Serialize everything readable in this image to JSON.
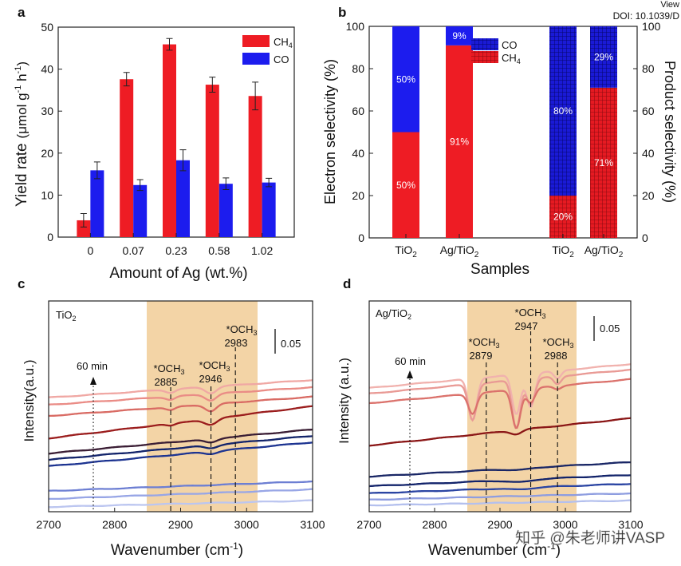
{
  "header": {
    "view_text": "View",
    "doi_text": "DOI: 10.1039/D"
  },
  "watermark": "知乎 @朱老师讲VASP",
  "colors": {
    "ch4": "#ee1c24",
    "co": "#1c1cee",
    "band": "#f3d4a6",
    "ch4_grid": "#c0111a",
    "co_grid": "#0b0b8c"
  },
  "chart_data": [
    {
      "panel": "a",
      "type": "bar",
      "title": "",
      "categories": [
        "0",
        "0.07",
        "0.23",
        "0.58",
        "1.02"
      ],
      "xlabel": "Amount of Ag (wt.%)",
      "ylabel": "Yield rate (μmol g⁻¹ h⁻¹)",
      "ylabel_main": "Yield rate",
      "ylabel_unit": "(μmol g",
      "ylabel_sup1": "-1",
      "ylabel_mid": " h",
      "ylabel_sup2": "-1",
      "ylabel_end": ")",
      "ylim": [
        0,
        50
      ],
      "yticks": [
        "0",
        "10",
        "20",
        "30",
        "40",
        "50"
      ],
      "series": [
        {
          "name": "CH4",
          "legend_main": "CH",
          "legend_sub": "4",
          "values": [
            4.0,
            37.6,
            45.9,
            36.3,
            33.6
          ],
          "errors": [
            1.6,
            1.6,
            1.4,
            1.8,
            3.3
          ]
        },
        {
          "name": "CO",
          "legend_main": "CO",
          "legend_sub": "",
          "values": [
            15.9,
            12.4,
            18.3,
            12.7,
            13.0
          ],
          "errors": [
            2.0,
            1.3,
            2.5,
            1.4,
            1.0
          ]
        }
      ]
    },
    {
      "panel": "b",
      "type": "bar",
      "stacked": true,
      "xlabel": "Samples",
      "ylabel_left": "Electron selectivity (%)",
      "ylabel_right": "Product selectivity (%)",
      "ylim": [
        0,
        100
      ],
      "yticks": [
        "0",
        "20",
        "40",
        "60",
        "80",
        "100"
      ],
      "categories": [
        {
          "main": "TiO",
          "sub": "2",
          "end": ""
        },
        {
          "main": "Ag/TiO",
          "sub": "2",
          "end": ""
        },
        {
          "main": "TiO",
          "sub": "2",
          "end": ""
        },
        {
          "main": "Ag/TiO",
          "sub": "2",
          "end": ""
        }
      ],
      "axis_group": [
        "Electron selectivity",
        "Electron selectivity",
        "Product selectivity",
        "Product selectivity"
      ],
      "series": [
        {
          "name": "CH4",
          "legend_main": "CH",
          "legend_sub": "4",
          "values": [
            50,
            91,
            20,
            71
          ],
          "labels": [
            "50%",
            "91%",
            "20%",
            "71%"
          ]
        },
        {
          "name": "CO",
          "legend_main": "CO",
          "legend_sub": "",
          "values": [
            50,
            9,
            80,
            29
          ],
          "labels": [
            "50%",
            "9%",
            "80%",
            "29%"
          ]
        }
      ]
    },
    {
      "panel": "c",
      "type": "line",
      "sample_main": "TiO",
      "sample_sub": "2",
      "xlabel": "Wavenumber (cm⁻¹)",
      "xlabel_main": "Wavenumber (cm",
      "xlabel_sup": "-1",
      "xlabel_end": ")",
      "ylabel": "Intensity(a.u.)",
      "xlim": [
        2700,
        3100
      ],
      "xticks": [
        "2700",
        "2800",
        "2900",
        "3000",
        "3100"
      ],
      "highlight_range": [
        2845,
        3015
      ],
      "scale_bar": "0.05",
      "time_label": "60 min",
      "peaks": [
        {
          "label": "*OCH",
          "sub": "3",
          "wavenumber": 2885
        },
        {
          "label": "*OCH",
          "sub": "3",
          "wavenumber": 2946
        },
        {
          "label": "*OCH",
          "sub": "3",
          "wavenumber": 2983
        }
      ]
    },
    {
      "panel": "d",
      "type": "line",
      "sample_main": "Ag/TiO",
      "sample_sub": "2",
      "xlabel": "Wavenumber (cm⁻¹)",
      "xlabel_main": "Wavenumber (cm",
      "xlabel_sup": "-1",
      "xlabel_end": ")",
      "ylabel": "Intensity (a.u.)",
      "xlim": [
        2700,
        3100
      ],
      "xticks": [
        "2700",
        "2800",
        "2900",
        "3000",
        "3100"
      ],
      "highlight_range": [
        2855,
        3020
      ],
      "scale_bar": "0.05",
      "time_label": "60 min",
      "peaks": [
        {
          "label": "*OCH",
          "sub": "3",
          "wavenumber": 2879
        },
        {
          "label": "*OCH",
          "sub": "3",
          "wavenumber": 2947
        },
        {
          "label": "*OCH",
          "sub": "3",
          "wavenumber": 2988
        }
      ]
    }
  ],
  "panel_labels": [
    "a",
    "b",
    "c",
    "d"
  ]
}
